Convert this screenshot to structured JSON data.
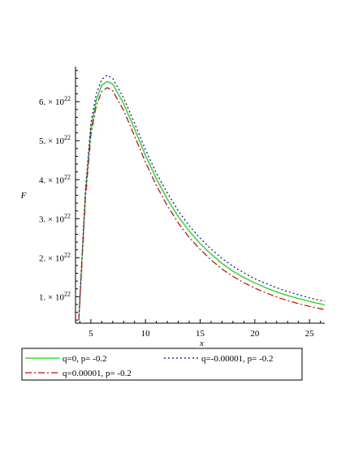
{
  "chart_data": {
    "type": "line",
    "xlabel": "x",
    "ylabel": "F",
    "xlim": [
      3.6,
      26.4
    ],
    "ylim": [
      0.32,
      6.9
    ],
    "y_scale_note": "×10^22",
    "x_ticks": [
      {
        "value": 5,
        "label": "5"
      },
      {
        "value": 10,
        "label": "10"
      },
      {
        "value": 15,
        "label": "15"
      },
      {
        "value": 20,
        "label": "20"
      },
      {
        "value": 25,
        "label": "25"
      }
    ],
    "y_ticks": [
      {
        "value": 1,
        "label": "1. × 10",
        "exp": "22"
      },
      {
        "value": 2,
        "label": "2. × 10",
        "exp": "22"
      },
      {
        "value": 3,
        "label": "3. × 10",
        "exp": "22"
      },
      {
        "value": 4,
        "label": "4. × 10",
        "exp": "22"
      },
      {
        "value": 5,
        "label": "5. × 10",
        "exp": "22"
      },
      {
        "value": 6,
        "label": "6. × 10",
        "exp": "22"
      }
    ],
    "legend_placement": "bottom",
    "series": [
      {
        "name": "q=0, p= -0.2",
        "color": "#00dd00",
        "dash": "solid",
        "x": [
          3.9,
          4.5,
          5.0,
          5.5,
          6.0,
          6.5,
          7.0,
          8.0,
          9.0,
          10.0,
          11.0,
          12.0,
          13.0,
          14.0,
          15.0,
          16.0,
          17.0,
          18.0,
          19.0,
          20.0,
          21.0,
          22.0,
          23.0,
          24.0,
          25.0,
          26.4
        ],
        "y": [
          0.4,
          3.6,
          5.3,
          6.05,
          6.42,
          6.52,
          6.45,
          5.95,
          5.3,
          4.62,
          4.02,
          3.5,
          3.05,
          2.68,
          2.36,
          2.09,
          1.85,
          1.65,
          1.49,
          1.35,
          1.23,
          1.12,
          1.03,
          0.95,
          0.88,
          0.79
        ]
      },
      {
        "name": "q=-0.00001, p= -0.2",
        "color": "#0000cc",
        "dash": "dotted",
        "x": [
          3.9,
          4.5,
          5.0,
          5.5,
          6.0,
          6.5,
          7.0,
          8.0,
          9.0,
          10.0,
          11.0,
          12.0,
          13.0,
          14.0,
          15.0,
          16.0,
          17.0,
          18.0,
          19.0,
          20.0,
          21.0,
          22.0,
          23.0,
          24.0,
          25.0,
          26.4
        ],
        "y": [
          0.4,
          3.7,
          5.45,
          6.2,
          6.57,
          6.68,
          6.6,
          6.1,
          5.45,
          4.77,
          4.17,
          3.66,
          3.2,
          2.82,
          2.5,
          2.22,
          1.98,
          1.78,
          1.61,
          1.46,
          1.34,
          1.23,
          1.13,
          1.05,
          0.97,
          0.88
        ]
      },
      {
        "name": "q=0.00001, p= -0.2",
        "color": "#dd0000",
        "dash": "dashdot",
        "x": [
          3.9,
          4.5,
          5.0,
          5.5,
          6.0,
          6.5,
          7.0,
          8.0,
          9.0,
          10.0,
          11.0,
          12.0,
          13.0,
          14.0,
          15.0,
          16.0,
          17.0,
          18.0,
          19.0,
          20.0,
          21.0,
          22.0,
          23.0,
          24.0,
          25.0,
          26.4
        ],
        "y": [
          0.4,
          3.5,
          5.15,
          5.9,
          6.26,
          6.36,
          6.28,
          5.78,
          5.12,
          4.45,
          3.85,
          3.33,
          2.89,
          2.52,
          2.21,
          1.94,
          1.71,
          1.52,
          1.36,
          1.22,
          1.1,
          0.99,
          0.9,
          0.82,
          0.75,
          0.67
        ]
      }
    ]
  }
}
